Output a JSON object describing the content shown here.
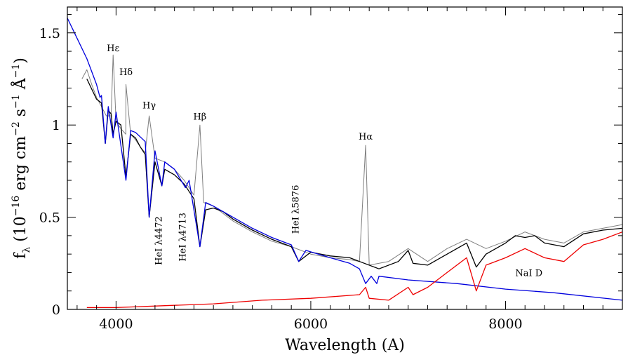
{
  "chart_data": {
    "type": "line",
    "xlabel": "Wavelength (A)",
    "ylabel_parts": {
      "f": "f",
      "lambda": "λ",
      "open": " (10",
      "exp1": "−16",
      "erg": " erg cm",
      "exp2": "−2",
      "s": " s",
      "exp3": "−1",
      "ang": " Å",
      "exp4": "−1",
      "close": ")"
    },
    "xlim": [
      3500,
      9200
    ],
    "ylim": [
      0,
      1.64
    ],
    "x_ticks": [
      4000,
      6000,
      8000
    ],
    "x_tick_labels": [
      "4000",
      "6000",
      "8000"
    ],
    "y_ticks": [
      0,
      0.5,
      1,
      1.5
    ],
    "y_tick_labels": [
      "0",
      "0.5",
      "1",
      "1.5"
    ],
    "x_minor_step": 200,
    "y_minor_step": 0.1,
    "colors": {
      "observed": "#7f7f7f",
      "smoothed": "#000000",
      "model": "#0000dd",
      "residual": "#ee0000"
    },
    "series": [
      {
        "name": "observed spectrum",
        "color": "#7f7f7f",
        "points": [
          [
            3650,
            1.25
          ],
          [
            3700,
            1.3
          ],
          [
            3750,
            1.22
          ],
          [
            3800,
            1.15
          ],
          [
            3850,
            1.1
          ],
          [
            3900,
            1.05
          ],
          [
            3950,
            1.05
          ],
          [
            3970,
            1.38
          ],
          [
            4000,
            1.02
          ],
          [
            4050,
            0.98
          ],
          [
            4100,
            0.95
          ],
          [
            4102,
            1.22
          ],
          [
            4150,
            0.95
          ],
          [
            4200,
            0.92
          ],
          [
            4250,
            0.88
          ],
          [
            4300,
            0.85
          ],
          [
            4340,
            1.05
          ],
          [
            4400,
            0.82
          ],
          [
            4500,
            0.8
          ],
          [
            4600,
            0.76
          ],
          [
            4700,
            0.7
          ],
          [
            4800,
            0.62
          ],
          [
            4861,
            1.0
          ],
          [
            4900,
            0.58
          ],
          [
            5000,
            0.56
          ],
          [
            5200,
            0.48
          ],
          [
            5400,
            0.42
          ],
          [
            5600,
            0.37
          ],
          [
            5800,
            0.34
          ],
          [
            6000,
            0.3
          ],
          [
            6200,
            0.28
          ],
          [
            6400,
            0.27
          ],
          [
            6500,
            0.26
          ],
          [
            6563,
            0.89
          ],
          [
            6600,
            0.24
          ],
          [
            6800,
            0.26
          ],
          [
            7000,
            0.33
          ],
          [
            7200,
            0.26
          ],
          [
            7400,
            0.33
          ],
          [
            7600,
            0.38
          ],
          [
            7800,
            0.33
          ],
          [
            8000,
            0.37
          ],
          [
            8200,
            0.42
          ],
          [
            8400,
            0.38
          ],
          [
            8600,
            0.36
          ],
          [
            8800,
            0.42
          ],
          [
            9000,
            0.44
          ],
          [
            9200,
            0.46
          ]
        ]
      },
      {
        "name": "smoothed spectrum",
        "color": "#000000",
        "points": [
          [
            3700,
            1.25
          ],
          [
            3800,
            1.14
          ],
          [
            3850,
            1.12
          ],
          [
            3890,
            0.9
          ],
          [
            3920,
            1.08
          ],
          [
            3950,
            1.06
          ],
          [
            3970,
            0.95
          ],
          [
            4000,
            1.02
          ],
          [
            4050,
            1.0
          ],
          [
            4102,
            0.72
          ],
          [
            4150,
            0.95
          ],
          [
            4200,
            0.93
          ],
          [
            4250,
            0.88
          ],
          [
            4300,
            0.84
          ],
          [
            4340,
            0.5
          ],
          [
            4400,
            0.8
          ],
          [
            4471,
            0.67
          ],
          [
            4500,
            0.76
          ],
          [
            4600,
            0.73
          ],
          [
            4700,
            0.68
          ],
          [
            4800,
            0.6
          ],
          [
            4861,
            0.34
          ],
          [
            4920,
            0.54
          ],
          [
            5000,
            0.55
          ],
          [
            5100,
            0.53
          ],
          [
            5200,
            0.49
          ],
          [
            5400,
            0.43
          ],
          [
            5600,
            0.38
          ],
          [
            5800,
            0.34
          ],
          [
            5876,
            0.26
          ],
          [
            6000,
            0.31
          ],
          [
            6200,
            0.29
          ],
          [
            6400,
            0.28
          ],
          [
            6500,
            0.26
          ],
          [
            6700,
            0.22
          ],
          [
            6900,
            0.26
          ],
          [
            7000,
            0.32
          ],
          [
            7050,
            0.25
          ],
          [
            7200,
            0.24
          ],
          [
            7400,
            0.3
          ],
          [
            7600,
            0.36
          ],
          [
            7700,
            0.23
          ],
          [
            7800,
            0.3
          ],
          [
            8000,
            0.36
          ],
          [
            8100,
            0.4
          ],
          [
            8200,
            0.39
          ],
          [
            8300,
            0.4
          ],
          [
            8400,
            0.36
          ],
          [
            8600,
            0.34
          ],
          [
            8800,
            0.41
          ],
          [
            9000,
            0.43
          ],
          [
            9200,
            0.44
          ]
        ]
      },
      {
        "name": "model continuum",
        "color": "#0000dd",
        "points": [
          [
            3500,
            1.58
          ],
          [
            3600,
            1.47
          ],
          [
            3700,
            1.36
          ],
          [
            3800,
            1.22
          ],
          [
            3835,
            1.15
          ],
          [
            3850,
            1.16
          ],
          [
            3889,
            0.9
          ],
          [
            3920,
            1.1
          ],
          [
            3970,
            0.93
          ],
          [
            4000,
            1.07
          ],
          [
            4102,
            0.7
          ],
          [
            4150,
            0.97
          ],
          [
            4200,
            0.96
          ],
          [
            4300,
            0.91
          ],
          [
            4340,
            0.5
          ],
          [
            4400,
            0.86
          ],
          [
            4471,
            0.67
          ],
          [
            4500,
            0.8
          ],
          [
            4600,
            0.76
          ],
          [
            4713,
            0.66
          ],
          [
            4750,
            0.7
          ],
          [
            4861,
            0.34
          ],
          [
            4920,
            0.58
          ],
          [
            5000,
            0.56
          ],
          [
            5100,
            0.53
          ],
          [
            5200,
            0.5
          ],
          [
            5400,
            0.44
          ],
          [
            5600,
            0.39
          ],
          [
            5800,
            0.35
          ],
          [
            5876,
            0.26
          ],
          [
            5950,
            0.32
          ],
          [
            6200,
            0.28
          ],
          [
            6400,
            0.25
          ],
          [
            6500,
            0.22
          ],
          [
            6563,
            0.14
          ],
          [
            6620,
            0.18
          ],
          [
            6678,
            0.14
          ],
          [
            6700,
            0.18
          ],
          [
            7000,
            0.16
          ],
          [
            7500,
            0.14
          ],
          [
            8000,
            0.11
          ],
          [
            8500,
            0.09
          ],
          [
            9200,
            0.05
          ]
        ]
      },
      {
        "name": "residual spectrum",
        "color": "#ee0000",
        "points": [
          [
            3700,
            0.01
          ],
          [
            4000,
            0.01
          ],
          [
            4500,
            0.02
          ],
          [
            5000,
            0.03
          ],
          [
            5500,
            0.05
          ],
          [
            6000,
            0.06
          ],
          [
            6500,
            0.08
          ],
          [
            6563,
            0.12
          ],
          [
            6600,
            0.06
          ],
          [
            6800,
            0.05
          ],
          [
            7000,
            0.12
          ],
          [
            7050,
            0.08
          ],
          [
            7200,
            0.12
          ],
          [
            7400,
            0.2
          ],
          [
            7600,
            0.28
          ],
          [
            7700,
            0.1
          ],
          [
            7800,
            0.24
          ],
          [
            8000,
            0.28
          ],
          [
            8200,
            0.33
          ],
          [
            8400,
            0.28
          ],
          [
            8600,
            0.26
          ],
          [
            8800,
            0.35
          ],
          [
            9000,
            0.38
          ],
          [
            9200,
            0.42
          ]
        ]
      }
    ],
    "annotations": [
      {
        "label": "Hε",
        "x": 3970,
        "y": 1.4,
        "rotate": false
      },
      {
        "label": "Hδ",
        "x": 4102,
        "y": 1.27,
        "rotate": false
      },
      {
        "label": "Hγ",
        "x": 4340,
        "y": 1.09,
        "rotate": false
      },
      {
        "label": "Hβ",
        "x": 4861,
        "y": 1.03,
        "rotate": false
      },
      {
        "label": "Hα",
        "x": 6563,
        "y": 0.92,
        "rotate": false
      },
      {
        "label": "HeI λ4472",
        "x": 4471,
        "y": 0.24,
        "rotate": true
      },
      {
        "label": "HeI λ4713",
        "x": 4713,
        "y": 0.26,
        "rotate": true
      },
      {
        "label": "HeI λ5876",
        "x": 5876,
        "y": 0.41,
        "rotate": true
      },
      {
        "label": "NaI D",
        "x": 8240,
        "y": 0.18,
        "rotate": false
      }
    ]
  }
}
